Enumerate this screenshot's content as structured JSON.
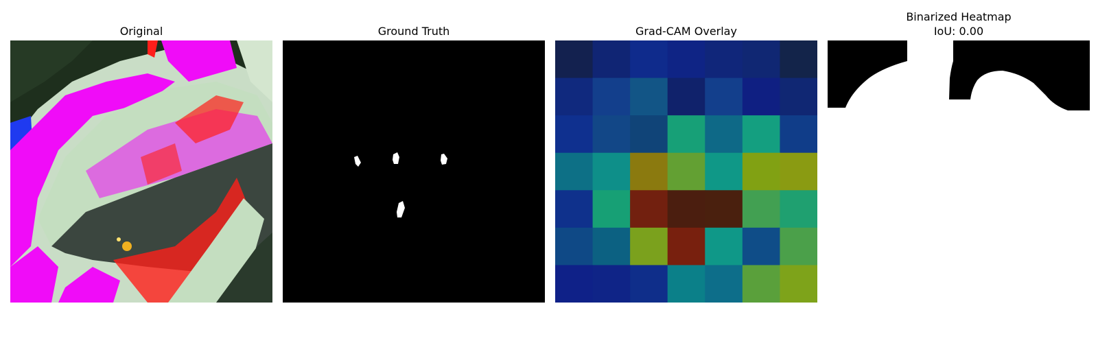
{
  "panels": {
    "original": {
      "title": "Original"
    },
    "ground_truth": {
      "title": "Ground Truth"
    },
    "gradcam": {
      "title": "Grad-CAM Overlay"
    },
    "binarized": {
      "title": "Binarized Heatmap",
      "subtitle": "IoU: 0.00"
    }
  },
  "chart_data": {
    "type": "heatmap",
    "grid_rows": 7,
    "grid_cols": 7,
    "cell_colors": [
      [
        "#13214f",
        "#102574",
        "#0f2b8c",
        "#0f2485",
        "#10267a",
        "#102773",
        "#13244a"
      ],
      [
        "#10297e",
        "#133f8c",
        "#125586",
        "#10226b",
        "#133f8c",
        "#0f1f82",
        "#102773"
      ],
      [
        "#0f308f",
        "#124787",
        "#104478",
        "#17a077",
        "#0e6987",
        "#149f80",
        "#103d89"
      ],
      [
        "#0d7086",
        "#0e8f89",
        "#8b7a0f",
        "#63a033",
        "#0f9887",
        "#81a113",
        "#8a9b12"
      ],
      [
        "#0f318c",
        "#17a075",
        "#72200f",
        "#4b1e0f",
        "#4a200e",
        "#42a052",
        "#1fa070"
      ],
      [
        "#0f4986",
        "#0c6182",
        "#7ba11d",
        "#78200e",
        "#0f9888",
        "#0f4d88",
        "#4ba04a"
      ],
      [
        "#0f2188",
        "#0f2487",
        "#0f2e8a",
        "#0b8089",
        "#0d6e8a",
        "#5aa03b",
        "#7ea31a"
      ]
    ]
  },
  "colors": {
    "magenta": "#f00cf8",
    "pale_leaf": "#c4dec0",
    "dark_leaf": "#3b463f",
    "red": "#ff1f1a",
    "blue": "#1f3af0",
    "dark_green": "#1e2f1d"
  }
}
